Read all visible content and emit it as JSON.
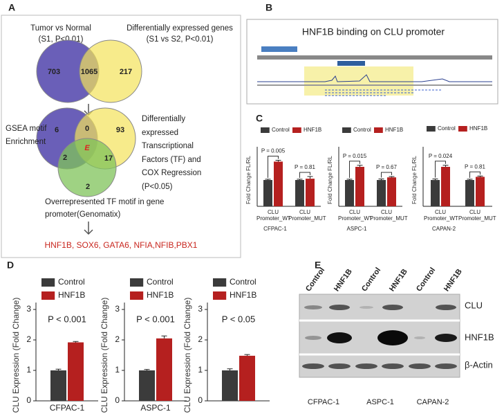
{
  "panel_labels": [
    "A",
    "B",
    "C",
    "D",
    "E"
  ],
  "panel_a": {
    "venn1": {
      "left_title": [
        "Tumor vs Normal",
        "(S1, P<0.01)"
      ],
      "right_title": [
        "Differentially expressed genes",
        "(S1 vs S2, P<0.01)"
      ],
      "counts": [
        "703",
        "1065",
        "217"
      ]
    },
    "venn2": {
      "left_label": [
        "GSEA motif",
        "Enrichment"
      ],
      "right_label": [
        "Differentially",
        "expressed",
        "Transcriptional",
        "Factors (TF) and",
        "COX Regression",
        "(P<0.05)"
      ],
      "bottom_label": [
        "Overrepresented TF motif in gene",
        "promoter(Genomatix)"
      ],
      "counts": [
        "6",
        "0",
        "93",
        "2",
        "E",
        "17",
        "2"
      ]
    },
    "result": "HNF1B, SOX6, GATA6, NFIA,NFIB,PBX1"
  },
  "panel_b": {
    "title": "HNF1B binding on CLU promoter"
  },
  "panel_e": {
    "lanes": [
      "Control",
      "HNF1B",
      "Control",
      "HNF1B",
      "Control",
      "HNF1B"
    ],
    "bands": [
      "CLU",
      "HNF1B",
      "β-Actin"
    ],
    "cell_lines": [
      "CFPAC-1",
      "ASPC-1",
      "CAPAN-2"
    ]
  },
  "chart_data": [
    {
      "type": "bar",
      "ylabel": "Fold Change FL/RL",
      "xlabel": "CFPAC-1",
      "categories": [
        "CLU Promoter_WT",
        "CLU Promoter_MUT"
      ],
      "annotations": [
        "P = 0.005",
        "P = 0.81"
      ],
      "ylim": [
        0,
        2
      ],
      "series": [
        {
          "name": "Control",
          "color": "#3b3b3b",
          "values": [
            1.0,
            1.0
          ],
          "errors": [
            0.03,
            0.03
          ]
        },
        {
          "name": "HNF1B",
          "color": "#b5201f",
          "values": [
            1.7,
            1.05
          ],
          "errors": [
            0.05,
            0.08
          ]
        }
      ]
    },
    {
      "type": "bar",
      "ylabel": "Fold Change FL/RL",
      "xlabel": "ASPC-1",
      "categories": [
        "CLU Promoter_WT",
        "CLU Promoter_MUT"
      ],
      "annotations": [
        "P = 0.015",
        "P = 0.67"
      ],
      "ylim": [
        0,
        2
      ],
      "series": [
        {
          "name": "Control",
          "color": "#3b3b3b",
          "values": [
            1.0,
            1.0
          ],
          "errors": [
            0.03,
            0.04
          ]
        },
        {
          "name": "HNF1B",
          "color": "#b5201f",
          "values": [
            1.5,
            1.1
          ],
          "errors": [
            0.06,
            0.03
          ]
        }
      ]
    },
    {
      "type": "bar",
      "ylabel": "Fold Change FL/RL",
      "xlabel": "CAPAN-2",
      "categories": [
        "CLU Promoter_WT",
        "CLU Promoter_MUT"
      ],
      "annotations": [
        "P = 0.024",
        "P = 0.81"
      ],
      "ylim": [
        0,
        2
      ],
      "series": [
        {
          "name": "Control",
          "color": "#3b3b3b",
          "values": [
            1.0,
            1.0
          ],
          "errors": [
            0.04,
            0.03
          ]
        },
        {
          "name": "HNF1B",
          "color": "#b5201f",
          "values": [
            1.5,
            1.12
          ],
          "errors": [
            0.06,
            0.03
          ]
        }
      ]
    },
    {
      "type": "bar",
      "ylabel": "CLU Expression (Fold Change)",
      "categories": [
        "CFPAC-1"
      ],
      "annotations": [
        "P < 0.001"
      ],
      "ylim": [
        0,
        3
      ],
      "yticks": [
        0,
        1,
        2,
        3
      ],
      "series": [
        {
          "name": "Control",
          "color": "#3b3b3b",
          "values": [
            1.0
          ],
          "errors": [
            0.04
          ]
        },
        {
          "name": "HNF1B",
          "color": "#b5201f",
          "values": [
            1.92
          ],
          "errors": [
            0.03
          ]
        }
      ]
    },
    {
      "type": "bar",
      "ylabel": "CLU Expression (Fold Change)",
      "categories": [
        "ASPC-1"
      ],
      "annotations": [
        "P < 0.001"
      ],
      "ylim": [
        0,
        3
      ],
      "yticks": [
        0,
        1,
        2,
        3
      ],
      "series": [
        {
          "name": "Control",
          "color": "#3b3b3b",
          "values": [
            1.0
          ],
          "errors": [
            0.03
          ]
        },
        {
          "name": "HNF1B",
          "color": "#b5201f",
          "values": [
            2.05
          ],
          "errors": [
            0.08
          ]
        }
      ]
    },
    {
      "type": "bar",
      "ylabel": "CLU Expression (Fold Change)",
      "categories": [
        null
      ],
      "annotations": [
        "P < 0.05"
      ],
      "ylim": [
        0,
        3
      ],
      "yticks": [
        0,
        1,
        2,
        3
      ],
      "series": [
        {
          "name": "Control",
          "color": "#3b3b3b",
          "values": [
            1.0
          ],
          "errors": [
            0.05
          ]
        },
        {
          "name": "HNF1B",
          "color": "#b5201f",
          "values": [
            1.48
          ],
          "errors": [
            0.04
          ]
        }
      ]
    }
  ]
}
